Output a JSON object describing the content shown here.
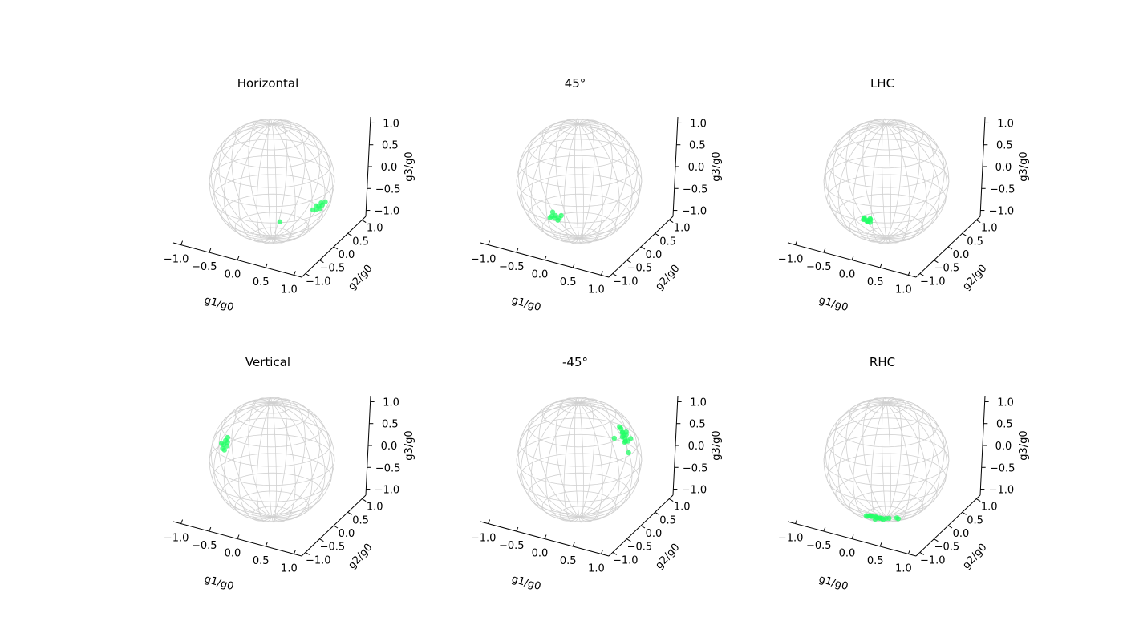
{
  "chart_data": [
    {
      "type": "scatter",
      "projection": "3d-sphere",
      "title": "Horizontal",
      "xlabel": "g1/g0",
      "ylabel": "g2/g0",
      "zlabel": "g3/g0",
      "xticks": [
        "−1.0",
        "−0.5",
        "0.0",
        "0.5",
        "1.0"
      ],
      "yticks": [
        "−1.0",
        "−0.5",
        "0.0",
        "0.5",
        "1.0"
      ],
      "zticks": [
        "−1.0",
        "−0.5",
        "0.0",
        "0.5",
        "1.0"
      ],
      "xlim": [
        -1,
        1
      ],
      "ylim": [
        -1,
        1
      ],
      "zlim": [
        -1,
        1
      ],
      "marker_color": "#22ff66",
      "sphere_color": "#d0d0d0",
      "points": [
        [
          0.97,
          -0.14,
          -0.16
        ],
        [
          0.98,
          -0.05,
          -0.17
        ],
        [
          0.96,
          -0.09,
          -0.22
        ],
        [
          0.95,
          -0.18,
          -0.21
        ],
        [
          0.99,
          -0.1,
          -0.11
        ],
        [
          0.93,
          0.12,
          -0.19
        ],
        [
          0.97,
          -0.22,
          -0.12
        ],
        [
          0.94,
          -0.27,
          -0.18
        ],
        [
          0.6,
          -0.72,
          -0.3
        ]
      ]
    },
    {
      "type": "scatter",
      "projection": "3d-sphere",
      "title": "45°",
      "xlabel": "g1/g0",
      "ylabel": "g2/g0",
      "zlabel": "g3/g0",
      "xticks": [
        "−1.0",
        "−0.5",
        "0.0",
        "0.5",
        "1.0"
      ],
      "yticks": [
        "−1.0",
        "−0.5",
        "0.0",
        "0.5",
        "1.0"
      ],
      "zticks": [
        "−1.0",
        "−0.5",
        "0.0",
        "0.5",
        "1.0"
      ],
      "xlim": [
        -1,
        1
      ],
      "ylim": [
        -1,
        1
      ],
      "zlim": [
        -1,
        1
      ],
      "marker_color": "#22ff66",
      "sphere_color": "#d0d0d0",
      "points": [
        [
          0.16,
          -0.97,
          -0.2
        ],
        [
          0.1,
          -0.98,
          -0.22
        ],
        [
          0.22,
          -0.95,
          -0.24
        ],
        [
          0.14,
          -0.96,
          -0.25
        ],
        [
          0.25,
          -0.94,
          -0.19
        ],
        [
          0.06,
          -0.97,
          -0.26
        ],
        [
          0.18,
          -0.93,
          -0.29
        ],
        [
          0.12,
          -0.99,
          -0.14
        ]
      ]
    },
    {
      "type": "scatter",
      "projection": "3d-sphere",
      "title": "LHC",
      "xlabel": "g1/g0",
      "ylabel": "g2/g0",
      "zlabel": "g3/g0",
      "xticks": [
        "−1.0",
        "−0.5",
        "0.0",
        "0.5",
        "1.0"
      ],
      "yticks": [
        "−1.0",
        "−0.5",
        "0.0",
        "0.5",
        "1.0"
      ],
      "zticks": [
        "−1.0",
        "−0.5",
        "0.0",
        "0.5",
        "1.0"
      ],
      "xlim": [
        -1,
        1
      ],
      "ylim": [
        -1,
        1
      ],
      "zlim": [
        -1,
        1
      ],
      "marker_color": "#22ff66",
      "sphere_color": "#d0d0d0",
      "points": [
        [
          0.02,
          -0.59,
          -0.46
        ],
        [
          -0.04,
          -0.61,
          -0.44
        ],
        [
          0.07,
          -0.6,
          -0.48
        ],
        [
          0.0,
          -0.56,
          -0.5
        ],
        [
          -0.02,
          -0.63,
          -0.41
        ],
        [
          0.05,
          -0.57,
          -0.43
        ],
        [
          -0.07,
          -0.58,
          -0.47
        ],
        [
          0.03,
          -0.64,
          -0.45
        ],
        [
          0.09,
          -0.62,
          -0.42
        ]
      ]
    },
    {
      "type": "scatter",
      "projection": "3d-sphere",
      "title": "Vertical",
      "xlabel": "g1/g0",
      "ylabel": "g2/g0",
      "zlabel": "g3/g0",
      "xticks": [
        "−1.0",
        "−0.5",
        "0.0",
        "0.5",
        "1.0"
      ],
      "yticks": [
        "−1.0",
        "−0.5",
        "0.0",
        "0.5",
        "1.0"
      ],
      "zticks": [
        "−1.0",
        "−0.5",
        "0.0",
        "0.5",
        "1.0"
      ],
      "xlim": [
        -1,
        1
      ],
      "ylim": [
        -1,
        1
      ],
      "zlim": [
        -1,
        1
      ],
      "marker_color": "#22ff66",
      "sphere_color": "#d0d0d0",
      "points": [
        [
          -0.97,
          0.1,
          0.0
        ],
        [
          -0.96,
          0.14,
          0.06
        ],
        [
          -0.98,
          0.08,
          -0.06
        ],
        [
          -0.95,
          0.18,
          0.02
        ],
        [
          -0.97,
          0.12,
          -0.1
        ],
        [
          -0.96,
          0.2,
          0.09
        ],
        [
          -0.98,
          0.05,
          0.04
        ],
        [
          -0.95,
          0.16,
          -0.04
        ]
      ]
    },
    {
      "type": "scatter",
      "projection": "3d-sphere",
      "title": "-45°",
      "xlabel": "g1/g0",
      "ylabel": "g2/g0",
      "zlabel": "g3/g0",
      "xticks": [
        "−1.0",
        "−0.5",
        "0.0",
        "0.5",
        "1.0"
      ],
      "yticks": [
        "−1.0",
        "−0.5",
        "0.0",
        "0.5",
        "1.0"
      ],
      "zticks": [
        "−1.0",
        "−0.5",
        "0.0",
        "0.5",
        "1.0"
      ],
      "xlim": [
        -1,
        1
      ],
      "ylim": [
        -1,
        1
      ],
      "zlim": [
        -1,
        1
      ],
      "marker_color": "#22ff66",
      "sphere_color": "#d0d0d0",
      "points": [
        [
          0.25,
          0.91,
          0.2
        ],
        [
          0.28,
          0.9,
          0.15
        ],
        [
          0.2,
          0.94,
          0.24
        ],
        [
          0.32,
          0.88,
          0.12
        ],
        [
          0.24,
          0.92,
          0.11
        ],
        [
          0.35,
          0.86,
          0.2
        ],
        [
          0.22,
          0.95,
          0.17
        ],
        [
          0.3,
          0.92,
          0.05
        ],
        [
          0.18,
          0.93,
          0.27
        ],
        [
          0.38,
          0.87,
          0.09
        ],
        [
          0.27,
          0.94,
          0.02
        ],
        [
          0.33,
          0.89,
          0.23
        ],
        [
          0.4,
          0.85,
          -0.1
        ],
        [
          0.05,
          0.98,
          0.02
        ],
        [
          0.42,
          0.88,
          0.14
        ]
      ]
    },
    {
      "type": "scatter",
      "projection": "3d-sphere",
      "title": "RHC",
      "xlabel": "g1/g0",
      "ylabel": "g2/g0",
      "zlabel": "g3/g0",
      "xticks": [
        "−1.0",
        "−0.5",
        "0.0",
        "0.5",
        "1.0"
      ],
      "yticks": [
        "−1.0",
        "−0.5",
        "0.0",
        "0.5",
        "1.0"
      ],
      "zticks": [
        "−1.0",
        "−0.5",
        "0.0",
        "0.5",
        "1.0"
      ],
      "xlim": [
        -1,
        1
      ],
      "ylim": [
        -1,
        1
      ],
      "zlim": [
        -1,
        1
      ],
      "marker_color": "#22ff66",
      "sphere_color": "#d0d0d0",
      "points": [
        [
          0.02,
          -0.35,
          -0.86
        ],
        [
          -0.05,
          -0.4,
          -0.84
        ],
        [
          0.08,
          -0.32,
          -0.88
        ],
        [
          0.0,
          -0.45,
          -0.82
        ],
        [
          -0.12,
          -0.38,
          -0.87
        ],
        [
          0.1,
          -0.43,
          -0.83
        ],
        [
          0.05,
          -0.28,
          -0.9
        ],
        [
          -0.08,
          -0.3,
          -0.89
        ],
        [
          0.15,
          -0.37,
          -0.85
        ],
        [
          -0.02,
          -0.48,
          -0.8
        ],
        [
          0.18,
          -0.3,
          -0.87
        ],
        [
          0.12,
          -0.5,
          -0.79
        ],
        [
          0.2,
          -0.42,
          -0.84
        ],
        [
          -0.1,
          -0.45,
          -0.83
        ],
        [
          0.3,
          -0.4,
          -0.8
        ],
        [
          0.42,
          -0.36,
          -0.78
        ],
        [
          0.4,
          -0.28,
          -0.83
        ],
        [
          0.0,
          -0.34,
          -0.91
        ]
      ]
    }
  ]
}
